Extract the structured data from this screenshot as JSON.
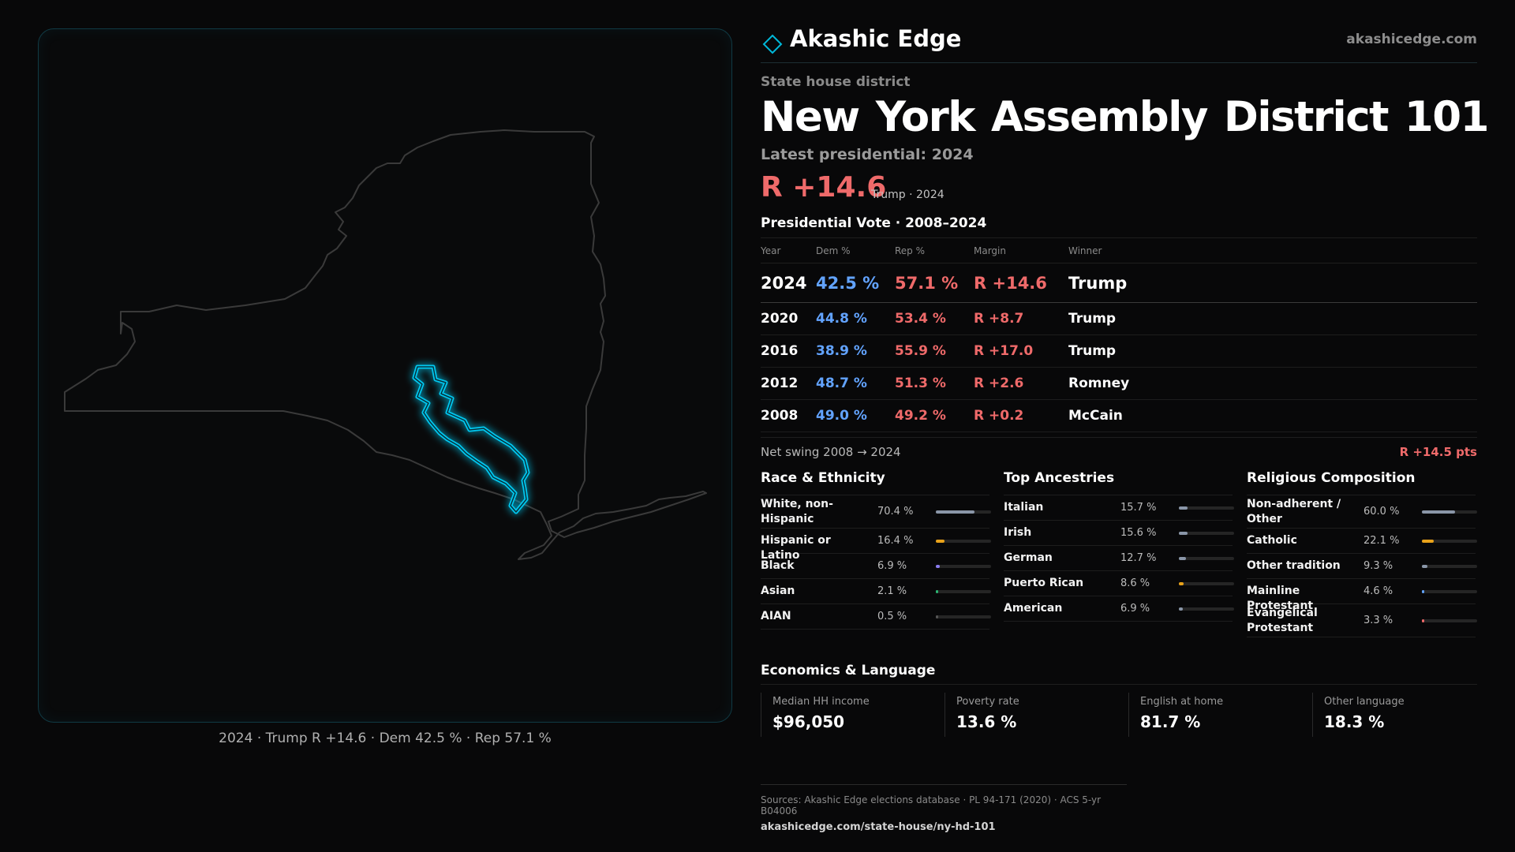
{
  "brand": {
    "name": "Akashic Edge",
    "site": "akashicedge.com",
    "accent": "#00b8d9"
  },
  "kicker": "State house district",
  "title": "New York  Assembly District 101",
  "latest_label": "Latest presidential: 2024",
  "hero": {
    "margin": "R +14.6",
    "sub": "Trump · 2024"
  },
  "pres_section_title": "Presidential Vote · 2008–2024",
  "pres_table": {
    "headers": [
      "Year",
      "Dem %",
      "Rep %",
      "Margin",
      "Winner"
    ],
    "rows": [
      {
        "year": "2024",
        "dem": "42.5 %",
        "rep": "57.1 %",
        "margin": "R +14.6",
        "winner": "Trump"
      },
      {
        "year": "2020",
        "dem": "44.8 %",
        "rep": "53.4 %",
        "margin": "R +8.7",
        "winner": "Trump"
      },
      {
        "year": "2016",
        "dem": "38.9 %",
        "rep": "55.9 %",
        "margin": "R +17.0",
        "winner": "Trump"
      },
      {
        "year": "2012",
        "dem": "48.7 %",
        "rep": "51.3 %",
        "margin": "R +2.6",
        "winner": "Romney"
      },
      {
        "year": "2008",
        "dem": "49.0 %",
        "rep": "49.2 %",
        "margin": "R +0.2",
        "winner": "McCain"
      }
    ]
  },
  "swing": {
    "label": "Net swing 2008 → 2024",
    "value": "R +14.5 pts"
  },
  "race": {
    "title": "Race & Ethnicity",
    "items": [
      {
        "label": "White, non-Hispanic",
        "value": "70.4 %",
        "share": 70.4,
        "color": "#8a96a8"
      },
      {
        "label": "Hispanic or Latino",
        "value": "16.4 %",
        "share": 16.4,
        "color": "#e8a21a"
      },
      {
        "label": "Black",
        "value": "6.9 %",
        "share": 6.9,
        "color": "#8a7cf0"
      },
      {
        "label": "Asian",
        "value": "2.1 %",
        "share": 2.1,
        "color": "#2bb673"
      },
      {
        "label": "AIAN",
        "value": "0.5 %",
        "share": 0.5,
        "color": "#555555"
      }
    ]
  },
  "ancestry": {
    "title": "Top Ancestries",
    "items": [
      {
        "label": "Italian",
        "value": "15.7 %",
        "share": 15.7,
        "color": "#8a96a8"
      },
      {
        "label": "Irish",
        "value": "15.6 %",
        "share": 15.6,
        "color": "#8a96a8"
      },
      {
        "label": "German",
        "value": "12.7 %",
        "share": 12.7,
        "color": "#8a96a8"
      },
      {
        "label": "Puerto Rican",
        "value": "8.6 %",
        "share": 8.6,
        "color": "#e8a21a"
      },
      {
        "label": "American",
        "value": "6.9 %",
        "share": 6.9,
        "color": "#8a96a8"
      }
    ]
  },
  "religion": {
    "title": "Religious Composition",
    "items": [
      {
        "label": "Non-adherent / Other",
        "value": "60.0 %",
        "share": 60.0,
        "color": "#8a96a8"
      },
      {
        "label": "Catholic",
        "value": "22.1 %",
        "share": 22.1,
        "color": "#e8a21a"
      },
      {
        "label": "Other tradition",
        "value": "9.3 %",
        "share": 9.3,
        "color": "#8a96a8"
      },
      {
        "label": "Mainline Protestant",
        "value": "4.6 %",
        "share": 4.6,
        "color": "#62a3ff"
      },
      {
        "label": "Evangelical Protestant",
        "value": "3.3 %",
        "share": 3.3,
        "color": "#ef6a6a"
      }
    ]
  },
  "economics": {
    "title": "Economics & Language",
    "items": [
      {
        "label": "Median HH income",
        "value": "$96,050"
      },
      {
        "label": "Poverty rate",
        "value": "13.6 %"
      },
      {
        "label": "English at home",
        "value": "81.7 %"
      },
      {
        "label": "Other language",
        "value": "18.3 %"
      }
    ]
  },
  "map_caption": "2024 · Trump R +14.6 · Dem 42.5 % · Rep 57.1 %",
  "sources": {
    "line": "Sources: Akashic Edge elections database · PL 94-171 (2020) · ACS 5-yr B04006",
    "url": "akashicedge.com/state-house/ny-hd-101"
  }
}
